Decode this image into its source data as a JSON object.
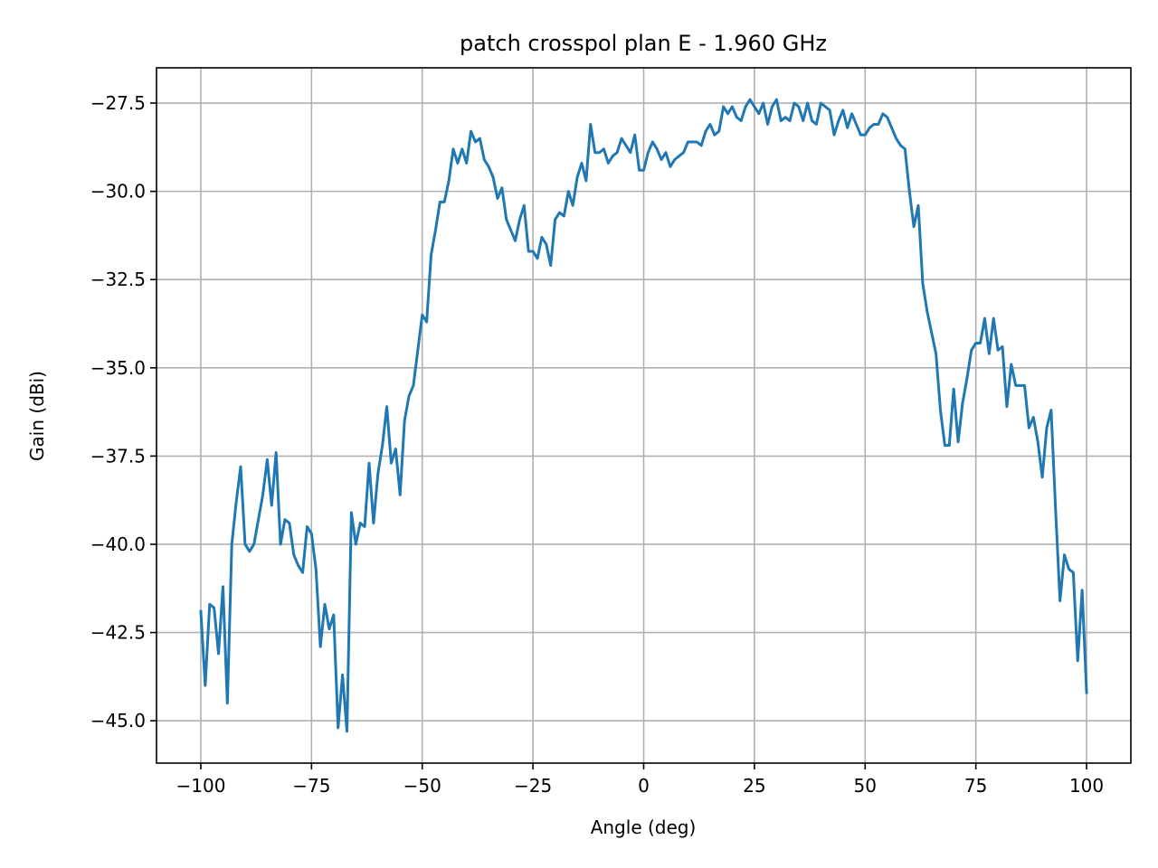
{
  "chart_data": {
    "type": "line",
    "title": "patch crosspol plan E - 1.960 GHz",
    "xlabel": "Angle (deg)",
    "ylabel": "Gain (dBi)",
    "xlim": [
      -110,
      110
    ],
    "ylim": [
      -46.2,
      -26.5
    ],
    "xticks": [
      -100,
      -75,
      -50,
      -25,
      0,
      25,
      50,
      75,
      100
    ],
    "xtick_labels": [
      "−100",
      "−75",
      "−50",
      "−25",
      "0",
      "25",
      "50",
      "75",
      "100"
    ],
    "yticks": [
      -45.0,
      -42.5,
      -40.0,
      -37.5,
      -35.0,
      -32.5,
      -30.0,
      -27.5
    ],
    "ytick_labels": [
      "−45.0",
      "−42.5",
      "−40.0",
      "−37.5",
      "−35.0",
      "−32.5",
      "−30.0",
      "−27.5"
    ],
    "grid": true,
    "line_color": "#1f77b4",
    "series": [
      {
        "x": [
          -100,
          -99,
          -98,
          -97,
          -96,
          -95,
          -94,
          -93,
          -92,
          -91,
          -90,
          -89,
          -88,
          -87,
          -86,
          -85,
          -84,
          -83,
          -82,
          -81,
          -80,
          -79,
          -78,
          -77,
          -76,
          -75,
          -74,
          -73,
          -72,
          -71,
          -70,
          -69,
          -68,
          -67,
          -66,
          -65,
          -64,
          -63,
          -62,
          -61,
          -60,
          -59,
          -58,
          -57,
          -56,
          -55,
          -54,
          -53,
          -52,
          -51,
          -50,
          -49,
          -48,
          -47,
          -46,
          -45,
          -44,
          -43,
          -42,
          -41,
          -40,
          -39,
          -38,
          -37,
          -36,
          -35,
          -34,
          -33,
          -32,
          -31,
          -30,
          -29,
          -28,
          -27,
          -26,
          -25,
          -24,
          -23,
          -22,
          -21,
          -20,
          -19,
          -18,
          -17,
          -16,
          -15,
          -14,
          -13,
          -12,
          -11,
          -10,
          -9,
          -8,
          -7,
          -6,
          -5,
          -4,
          -3,
          -2,
          -1,
          0,
          1,
          2,
          3,
          4,
          5,
          6,
          7,
          8,
          9,
          10,
          11,
          12,
          13,
          14,
          15,
          16,
          17,
          18,
          19,
          20,
          21,
          22,
          23,
          24,
          25,
          26,
          27,
          28,
          29,
          30,
          31,
          32,
          33,
          34,
          35,
          36,
          37,
          38,
          39,
          40,
          41,
          42,
          43,
          44,
          45,
          46,
          47,
          48,
          49,
          50,
          51,
          52,
          53,
          54,
          55,
          56,
          57,
          58,
          59,
          60,
          61,
          62,
          63,
          64,
          65,
          66,
          67,
          68,
          69,
          70,
          71,
          72,
          73,
          74,
          75,
          76,
          77,
          78,
          79,
          80,
          81,
          82,
          83,
          84,
          85,
          86,
          87,
          88,
          89,
          90,
          91,
          92,
          93,
          94,
          95,
          96,
          97,
          98,
          99,
          100
        ],
        "y": [
          -41.9,
          -44.0,
          -41.7,
          -41.8,
          -43.1,
          -41.2,
          -44.5,
          -40.0,
          -38.8,
          -37.8,
          -40.0,
          -40.2,
          -40.0,
          -39.3,
          -38.6,
          -37.6,
          -38.9,
          -37.4,
          -40.0,
          -39.3,
          -39.4,
          -40.3,
          -40.6,
          -40.8,
          -39.5,
          -39.7,
          -40.7,
          -42.9,
          -41.7,
          -42.4,
          -42.0,
          -45.2,
          -43.7,
          -45.3,
          -39.1,
          -40.0,
          -39.4,
          -39.5,
          -37.7,
          -39.4,
          -38.0,
          -37.2,
          -36.1,
          -37.7,
          -37.3,
          -38.6,
          -36.5,
          -35.8,
          -35.5,
          -34.5,
          -33.5,
          -33.7,
          -31.8,
          -31.1,
          -30.3,
          -30.3,
          -29.7,
          -28.8,
          -29.2,
          -28.8,
          -29.2,
          -28.3,
          -28.6,
          -28.5,
          -29.1,
          -29.3,
          -29.6,
          -30.2,
          -29.9,
          -30.8,
          -31.1,
          -31.4,
          -30.8,
          -30.4,
          -31.7,
          -31.7,
          -31.9,
          -31.3,
          -31.5,
          -32.1,
          -30.8,
          -30.6,
          -30.7,
          -30.0,
          -30.4,
          -29.6,
          -29.2,
          -29.7,
          -28.1,
          -28.9,
          -28.9,
          -28.8,
          -29.2,
          -29.0,
          -28.9,
          -28.5,
          -28.7,
          -28.9,
          -28.4,
          -29.4,
          -29.4,
          -28.9,
          -28.6,
          -28.8,
          -29.1,
          -28.9,
          -29.3,
          -29.1,
          -29.0,
          -28.9,
          -28.6,
          -28.6,
          -28.6,
          -28.7,
          -28.3,
          -28.1,
          -28.4,
          -28.3,
          -27.6,
          -27.8,
          -27.6,
          -27.9,
          -28.0,
          -27.6,
          -27.4,
          -27.6,
          -27.8,
          -27.5,
          -28.1,
          -27.6,
          -27.4,
          -28.0,
          -27.9,
          -28.0,
          -27.5,
          -27.6,
          -28.0,
          -27.5,
          -28.0,
          -28.1,
          -27.5,
          -27.6,
          -27.7,
          -28.4,
          -28.0,
          -27.7,
          -28.2,
          -27.8,
          -28.1,
          -28.4,
          -28.4,
          -28.2,
          -28.1,
          -28.1,
          -27.8,
          -27.9,
          -28.2,
          -28.5,
          -28.7,
          -28.8,
          -30.0,
          -31.0,
          -30.4,
          -32.6,
          -33.4,
          -34.0,
          -34.6,
          -36.2,
          -37.2,
          -37.2,
          -35.6,
          -37.1,
          -36.0,
          -35.3,
          -34.5,
          -34.3,
          -34.3,
          -33.6,
          -34.6,
          -33.6,
          -34.5,
          -34.4,
          -36.1,
          -34.9,
          -35.5,
          -35.5,
          -35.5,
          -36.7,
          -36.4,
          -37.1,
          -38.1,
          -36.7,
          -36.2,
          -39.0,
          -41.6,
          -40.3,
          -40.7,
          -40.8,
          -43.3,
          -41.3,
          -44.2
        ]
      }
    ]
  }
}
